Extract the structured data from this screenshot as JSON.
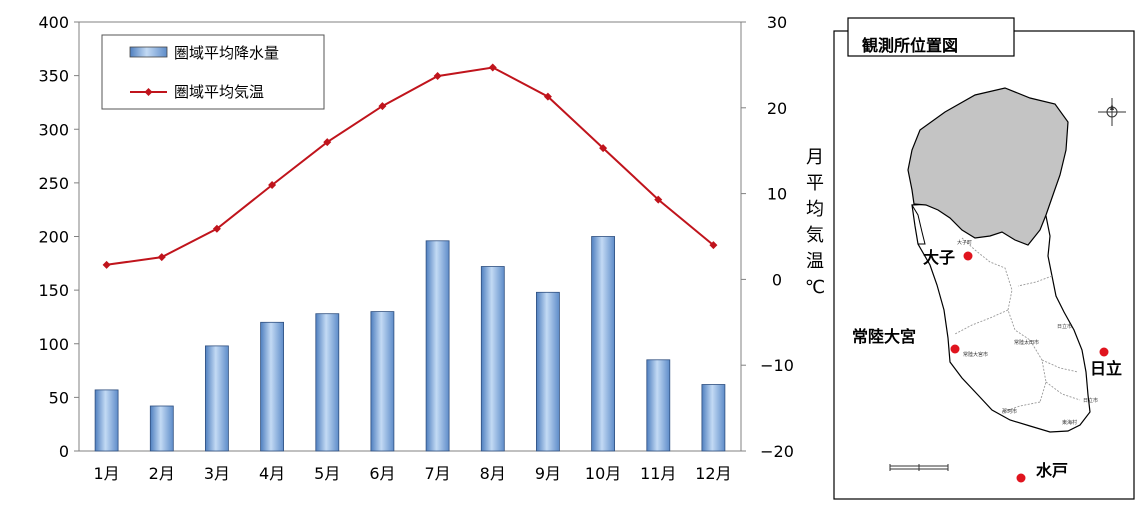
{
  "chart_data": {
    "type": "bar+line",
    "categories": [
      "1月",
      "2月",
      "3月",
      "4月",
      "5月",
      "6月",
      "7月",
      "8月",
      "9月",
      "10月",
      "11月",
      "12月"
    ],
    "series": [
      {
        "name": "圏域平均降水量",
        "type": "bar",
        "axis": "left",
        "values": [
          57,
          42,
          98,
          120,
          128,
          130,
          196,
          172,
          148,
          200,
          85,
          62
        ],
        "color": "#6f9ed6"
      },
      {
        "name": "圏域平均気温",
        "type": "line",
        "axis": "right",
        "values": [
          1.7,
          2.6,
          5.9,
          11.0,
          16.0,
          20.2,
          23.7,
          24.7,
          21.3,
          15.3,
          9.3,
          4.0
        ],
        "color": "#c0141c"
      }
    ],
    "y_left": {
      "ylim": [
        0,
        400
      ],
      "ticks": [
        0,
        50,
        100,
        150,
        200,
        250,
        300,
        350,
        400
      ]
    },
    "y_right": {
      "ylim": [
        -20,
        30
      ],
      "ticks": [
        -20,
        -10,
        0,
        10,
        20,
        30
      ],
      "label": [
        "月",
        "平",
        "均",
        "気",
        "温",
        "℃"
      ]
    },
    "legend_position": "top-left",
    "grid": false
  },
  "map": {
    "title": "観測所位置図",
    "stations": [
      {
        "name": "大子"
      },
      {
        "name": "常陸大宮"
      },
      {
        "name": "日立"
      },
      {
        "name": "水戸"
      }
    ],
    "small_labels": [
      "大子町",
      "常陸太田市",
      "常陸大宮市",
      "日立市",
      "那珂市",
      "日立市",
      "東海村"
    ],
    "compass_icon": "compass-icon",
    "scale_bar_icon": "scale-bar-icon"
  }
}
